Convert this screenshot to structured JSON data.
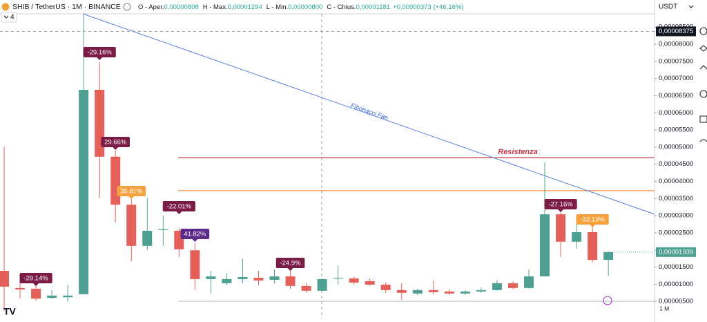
{
  "header": {
    "symbol": "SHIB / TetherUS · 1M · BINANCE",
    "ohlc": [
      {
        "label": "O - Aper.",
        "value": "0,00000808"
      },
      {
        "label": "H - Max.",
        "value": "0,00001294"
      },
      {
        "label": "L - Min.",
        "value": "0,00000800"
      },
      {
        "label": "C - Chius.",
        "value": "0,00001181"
      }
    ],
    "change": "+0,00000373 (+46,16%)",
    "indicators_count": "4",
    "currency": "USDT",
    "interval": "1 M"
  },
  "chart_data": {
    "type": "candlestick",
    "up_color": "#4ea192",
    "down_color": "#e5605a",
    "open": [
      1.39e-05,
      8.9e-06,
      8.7e-06,
      6e-06,
      6.2e-06,
      7.1e-06,
      6.67e-05,
      4.72e-05,
      3.32e-05,
      2.12e-05,
      2.58e-05,
      2.56e-05,
      1.99e-05,
      1.15e-05,
      1.03e-05,
      1.15e-05,
      1.19e-05,
      1.13e-05,
      1.23e-05,
      9.5e-06,
      8.1e-06,
      1.17e-05,
      1.17e-05,
      1.09e-05,
      9.9e-06,
      8.3e-06,
      7.3e-06,
      8.3e-06,
      7.9e-06,
      7.3e-06,
      7.9e-06,
      8.3e-06,
      1.03e-05,
      8.9e-06,
      1.23e-05,
      3.04e-05,
      2.24e-05,
      2.52e-05,
      1.71e-05
    ],
    "high": [
      5.02e-05,
      1.03e-05,
      1.03e-05,
      8.3e-06,
      9.7e-06,
      8.85e-05,
      7.48e-05,
      4.9e-05,
      3.51e-05,
      3.51e-05,
      3e-05,
      2.64e-05,
      2.2e-05,
      1.39e-05,
      1.33e-05,
      1.75e-05,
      1.39e-05,
      1.43e-05,
      1.41e-05,
      1.03e-05,
      1.17e-05,
      1.55e-05,
      1.23e-05,
      1.17e-05,
      1.05e-05,
      1.03e-05,
      8.7e-06,
      1.11e-05,
      8.7e-06,
      8.3e-06,
      9.1e-06,
      1.13e-05,
      1.09e-05,
      1.43e-05,
      4.55e-05,
      3.14e-05,
      2.94e-05,
      2.68e-05,
      1.97e-05
    ],
    "low": [
      2.2e-06,
      5.8e-06,
      5.2e-06,
      5.8e-06,
      5e-06,
      7.1e-06,
      3.51e-05,
      2.8e-05,
      1.67e-05,
      2e-05,
      2.12e-05,
      1.79e-05,
      8.3e-06,
      7.3e-06,
      9.7e-06,
      1.03e-05,
      9.7e-06,
      1.03e-05,
      8.7e-06,
      7.5e-06,
      8.1e-06,
      9.9e-06,
      9.9e-06,
      9.5e-06,
      7.5e-06,
      5.4e-06,
      6.9e-06,
      7.1e-06,
      6.9e-06,
      6.9e-06,
      7.5e-06,
      8.1e-06,
      8.5e-06,
      8.7e-06,
      1.23e-05,
      1.79e-05,
      2.04e-05,
      1.63e-05,
      1.25e-05
    ],
    "close": [
      9.3e-06,
      8.5e-06,
      5.8e-06,
      6.7e-06,
      6.7e-06,
      6.67e-05,
      4.72e-05,
      3.32e-05,
      2.12e-05,
      2.56e-05,
      2.6e-05,
      2.02e-05,
      1.15e-05,
      1.23e-05,
      1.15e-05,
      1.21e-05,
      1.11e-05,
      1.23e-05,
      9.5e-06,
      8.1e-06,
      1.15e-05,
      1.19e-05,
      1.05e-05,
      9.9e-06,
      8.3e-06,
      7.5e-06,
      8.3e-06,
      7.7e-06,
      7.3e-06,
      7.9e-06,
      8.3e-06,
      1.03e-05,
      8.9e-06,
      1.23e-05,
      3.04e-05,
      2.24e-05,
      2.52e-05,
      1.71e-05,
      1.939e-05
    ],
    "ylim": [
      0,
      9.29e-05
    ],
    "yticks": [
      {
        "value": 5e-06,
        "label": "0,00000500"
      },
      {
        "value": 1e-05,
        "label": "0,00001000"
      },
      {
        "value": 1.5e-05,
        "label": "0,00001500"
      },
      {
        "value": 2e-05,
        "label": "0,00002000"
      },
      {
        "value": 2.5e-05,
        "label": "0,00002500"
      },
      {
        "value": 3e-05,
        "label": "0,00003000"
      },
      {
        "value": 3.5e-05,
        "label": "0,00003500"
      },
      {
        "value": 4e-05,
        "label": "0,00004000"
      },
      {
        "value": 4.5e-05,
        "label": "0,00004500"
      },
      {
        "value": 5e-05,
        "label": "0,00005000"
      },
      {
        "value": 5.5e-05,
        "label": "0,00005500"
      },
      {
        "value": 6e-05,
        "label": "0,00006000"
      },
      {
        "value": 6.5e-05,
        "label": "0,00006500"
      },
      {
        "value": 7e-05,
        "label": "0,00007000"
      },
      {
        "value": 7.5e-05,
        "label": "0,00007500"
      },
      {
        "value": 8e-05,
        "label": "0,00008000"
      },
      {
        "value": 8.5e-05,
        "label": "0,00008500"
      }
    ],
    "crosshair": {
      "value": 8.375e-05,
      "label": "0,00008375"
    },
    "last_price": {
      "value": 1.939e-05,
      "label": "0,00001939"
    },
    "resistance": {
      "text": "Resistenza",
      "value": 4.69e-05,
      "color": "#c2374a"
    },
    "support_line": {
      "value": 3.73e-05,
      "color": "#f08a3c"
    },
    "fan_label": "Fibonacci Fan",
    "annotations": [
      {
        "text": "-29.14%",
        "color": "#7a1c45"
      },
      {
        "text": "-29.16%",
        "color": "#7a1c45"
      },
      {
        "text": "29.66%",
        "color": "#7a1c45"
      },
      {
        "text": "35.81%",
        "color": "#f5a23e"
      },
      {
        "text": "-22.01%",
        "color": "#7a1c45"
      },
      {
        "text": "41.82%",
        "color": "#5c2a8a"
      },
      {
        "text": "-24.9%",
        "color": "#7a1c45"
      },
      {
        "text": "-27.16%",
        "color": "#7a1c45"
      },
      {
        "text": "-32.13%",
        "color": "#f5a23e"
      }
    ]
  }
}
